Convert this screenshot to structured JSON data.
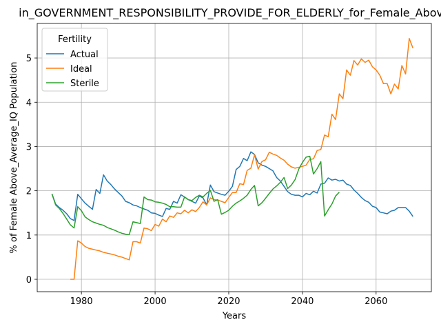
{
  "chart_data": {
    "type": "line",
    "title": "in_GOVERNMENT_RESPONSIBILITY_PROVIDE_FOR_ELDERLY_for_Female_Above",
    "xlabel": "Years",
    "ylabel": "% of Female Above_Average_IQ Population",
    "xlim": [
      1968,
      2075
    ],
    "ylim": [
      -0.28,
      5.78
    ],
    "xticks": [
      1980,
      2000,
      2020,
      2040,
      2060
    ],
    "yticks": [
      0,
      1,
      2,
      3,
      4,
      5
    ],
    "grid": true,
    "legend": {
      "title": "Fertility",
      "placement": "top-left"
    },
    "series": [
      {
        "name": "Actual",
        "color": "#1f77b4",
        "x": [
          1972,
          1973,
          1974,
          1975,
          1976,
          1977,
          1978,
          1979,
          1980,
          1981,
          1982,
          1983,
          1984,
          1985,
          1986,
          1987,
          1988,
          1989,
          1990,
          1991,
          1992,
          1993,
          1994,
          1995,
          1996,
          1997,
          1998,
          1999,
          2000,
          2001,
          2002,
          2003,
          2004,
          2005,
          2006,
          2007,
          2008,
          2009,
          2010,
          2011,
          2012,
          2013,
          2014,
          2015,
          2016,
          2017,
          2018,
          2019,
          2020,
          2021,
          2022,
          2023,
          2024,
          2025,
          2026,
          2027,
          2028,
          2029,
          2030,
          2031,
          2032,
          2033,
          2034,
          2035,
          2036,
          2037,
          2038,
          2039,
          2040,
          2041,
          2042,
          2043,
          2044,
          2045,
          2046,
          2047,
          2048,
          2049,
          2050,
          2051,
          2052,
          2053,
          2054,
          2055,
          2056,
          2057,
          2058,
          2059,
          2060,
          2061,
          2062,
          2063,
          2064,
          2065,
          2066,
          2067,
          2068,
          2069,
          2070
        ],
        "values": [
          1.93,
          1.7,
          1.62,
          1.56,
          1.48,
          1.37,
          1.33,
          1.92,
          1.82,
          1.72,
          1.65,
          1.58,
          2.03,
          1.94,
          2.36,
          2.22,
          2.14,
          2.04,
          1.96,
          1.88,
          1.76,
          1.73,
          1.68,
          1.66,
          1.62,
          1.59,
          1.56,
          1.5,
          1.49,
          1.45,
          1.42,
          1.6,
          1.58,
          1.76,
          1.72,
          1.91,
          1.86,
          1.8,
          1.76,
          1.72,
          1.88,
          1.84,
          1.68,
          2.13,
          1.98,
          1.95,
          1.92,
          1.9,
          1.99,
          2.1,
          2.48,
          2.55,
          2.73,
          2.68,
          2.88,
          2.82,
          2.63,
          2.58,
          2.55,
          2.5,
          2.45,
          2.3,
          2.22,
          2.1,
          1.98,
          1.92,
          1.9,
          1.9,
          1.86,
          1.94,
          1.91,
          1.99,
          1.95,
          2.15,
          2.17,
          2.29,
          2.24,
          2.26,
          2.22,
          2.24,
          2.15,
          2.12,
          2.02,
          1.94,
          1.85,
          1.78,
          1.74,
          1.65,
          1.62,
          1.52,
          1.5,
          1.48,
          1.54,
          1.56,
          1.62,
          1.62,
          1.62,
          1.54,
          1.42
        ]
      },
      {
        "name": "Ideal",
        "color": "#ff7f0e",
        "x": [
          1977,
          1978,
          1979,
          1980,
          1981,
          1982,
          1983,
          1984,
          1985,
          1986,
          1987,
          1988,
          1989,
          1990,
          1991,
          1992,
          1993,
          1994,
          1995,
          1996,
          1997,
          1998,
          1999,
          2000,
          2001,
          2002,
          2003,
          2004,
          2005,
          2006,
          2007,
          2008,
          2009,
          2010,
          2011,
          2012,
          2013,
          2014,
          2015,
          2016,
          2017,
          2018,
          2019,
          2020,
          2021,
          2022,
          2023,
          2024,
          2025,
          2026,
          2027,
          2028,
          2029,
          2030,
          2031,
          2032,
          2033,
          2034,
          2035,
          2036,
          2037,
          2038,
          2039,
          2040,
          2041,
          2042,
          2043,
          2044,
          2045,
          2046,
          2047,
          2048,
          2049,
          2050,
          2051,
          2052,
          2053,
          2054,
          2055,
          2056,
          2057,
          2058,
          2059,
          2060,
          2061,
          2062,
          2063,
          2064,
          2065,
          2066,
          2067,
          2068,
          2069,
          2070
        ],
        "values": [
          0.0,
          0.0,
          0.87,
          0.82,
          0.74,
          0.7,
          0.68,
          0.66,
          0.64,
          0.61,
          0.59,
          0.57,
          0.55,
          0.52,
          0.5,
          0.47,
          0.44,
          0.85,
          0.85,
          0.82,
          1.16,
          1.14,
          1.1,
          1.24,
          1.2,
          1.36,
          1.3,
          1.43,
          1.4,
          1.5,
          1.48,
          1.56,
          1.5,
          1.57,
          1.53,
          1.62,
          1.75,
          1.68,
          1.84,
          1.8,
          1.79,
          1.76,
          1.73,
          1.85,
          1.96,
          1.96,
          2.16,
          2.14,
          2.46,
          2.51,
          2.81,
          2.49,
          2.66,
          2.7,
          2.87,
          2.83,
          2.8,
          2.74,
          2.69,
          2.6,
          2.54,
          2.51,
          2.53,
          2.55,
          2.58,
          2.71,
          2.72,
          2.91,
          2.93,
          3.26,
          3.22,
          3.73,
          3.61,
          4.19,
          4.08,
          4.73,
          4.61,
          4.94,
          4.84,
          4.98,
          4.9,
          4.95,
          4.8,
          4.73,
          4.61,
          4.42,
          4.42,
          4.19,
          4.41,
          4.3,
          4.83,
          4.64,
          5.44,
          5.22
        ]
      },
      {
        "name": "Sterile",
        "color": "#2ca02c",
        "x": [
          1972,
          1973,
          1974,
          1975,
          1976,
          1977,
          1978,
          1979,
          1980,
          1981,
          1982,
          1983,
          1984,
          1985,
          1986,
          1987,
          1988,
          1989,
          1990,
          1991,
          1992,
          1993,
          1994,
          1995,
          1996,
          1997,
          1998,
          1999,
          2000,
          2001,
          2002,
          2003,
          2004,
          2005,
          2006,
          2007,
          2008,
          2009,
          2010,
          2011,
          2012,
          2013,
          2014,
          2015,
          2016,
          2017,
          2018,
          2019,
          2020,
          2021,
          2022,
          2023,
          2024,
          2025,
          2026,
          2027,
          2028,
          2029,
          2030,
          2031,
          2032,
          2033,
          2034,
          2035,
          2036,
          2037,
          2038,
          2039,
          2040,
          2041,
          2042,
          2043,
          2044,
          2045,
          2046,
          2047,
          2048,
          2049,
          2050
        ],
        "values": [
          1.93,
          1.68,
          1.6,
          1.49,
          1.36,
          1.23,
          1.16,
          1.64,
          1.55,
          1.41,
          1.35,
          1.3,
          1.27,
          1.24,
          1.22,
          1.17,
          1.14,
          1.11,
          1.07,
          1.04,
          1.02,
          1.01,
          1.3,
          1.28,
          1.26,
          1.86,
          1.8,
          1.79,
          1.75,
          1.74,
          1.72,
          1.69,
          1.64,
          1.64,
          1.63,
          1.63,
          1.86,
          1.8,
          1.78,
          1.85,
          1.9,
          1.86,
          1.94,
          2.01,
          1.76,
          1.8,
          1.47,
          1.51,
          1.56,
          1.65,
          1.72,
          1.77,
          1.83,
          1.9,
          2.03,
          2.12,
          1.66,
          1.73,
          1.83,
          1.94,
          2.04,
          2.11,
          2.19,
          2.3,
          2.05,
          2.13,
          2.25,
          2.49,
          2.64,
          2.76,
          2.78,
          2.38,
          2.5,
          2.66,
          1.43,
          1.57,
          1.7,
          1.88,
          1.97
        ]
      }
    ]
  }
}
